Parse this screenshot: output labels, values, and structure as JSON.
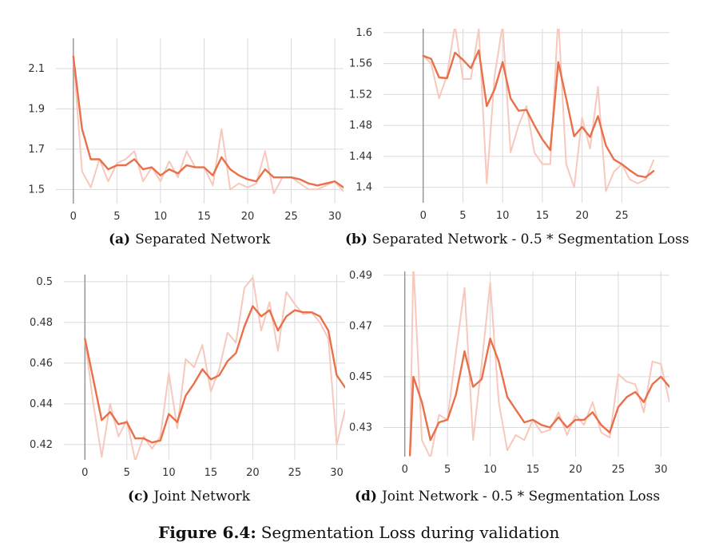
{
  "colors": {
    "smoothed": "#e8704a",
    "raw": "#f7c8bc",
    "grid": "#d9d9d9",
    "zero_line": "#8a8a8a"
  },
  "figure_caption": {
    "label": "Figure 6.4:",
    "text": "Segmentation Loss during validation"
  },
  "chart_data": [
    {
      "type": "line",
      "caption_label": "(a)",
      "caption_text": "Separated Network",
      "xlim": [
        -2,
        31
      ],
      "ylim": [
        1.43,
        2.25
      ],
      "x_ticks": [
        0,
        5,
        10,
        15,
        20,
        25,
        30
      ],
      "y_ticks": [
        1.5,
        1.7,
        1.9,
        2.1
      ],
      "grid": true,
      "series": [
        {
          "role": "smoothed",
          "x": [
            0,
            1,
            2,
            3,
            4,
            5,
            6,
            7,
            8,
            9,
            10,
            11,
            12,
            13,
            14,
            15,
            16,
            17,
            18,
            19,
            20,
            21,
            22,
            23,
            24,
            25,
            26,
            27,
            28,
            29,
            30,
            31
          ],
          "values": [
            2.16,
            1.8,
            1.65,
            1.65,
            1.6,
            1.62,
            1.62,
            1.65,
            1.6,
            1.61,
            1.57,
            1.6,
            1.58,
            1.62,
            1.61,
            1.61,
            1.57,
            1.66,
            1.6,
            1.57,
            1.55,
            1.54,
            1.6,
            1.56,
            1.56,
            1.56,
            1.55,
            1.53,
            1.52,
            1.53,
            1.54,
            1.51
          ]
        },
        {
          "role": "raw",
          "x": [
            0,
            1,
            2,
            3,
            4,
            5,
            6,
            7,
            8,
            9,
            10,
            11,
            12,
            13,
            14,
            15,
            16,
            17,
            18,
            19,
            20,
            21,
            22,
            23,
            24,
            25,
            26,
            27,
            28,
            29,
            30,
            31
          ],
          "values": [
            2.16,
            1.59,
            1.51,
            1.65,
            1.54,
            1.63,
            1.65,
            1.69,
            1.54,
            1.61,
            1.54,
            1.64,
            1.56,
            1.69,
            1.61,
            1.61,
            1.52,
            1.8,
            1.5,
            1.53,
            1.51,
            1.53,
            1.69,
            1.48,
            1.56,
            1.56,
            1.53,
            1.5,
            1.5,
            1.52,
            1.54,
            1.49
          ]
        }
      ]
    },
    {
      "type": "line",
      "caption_label": "(b)",
      "caption_text": "Separated Network - 0.5 * Segmentation Loss",
      "xlim": [
        -5,
        31
      ],
      "ylim": [
        1.38,
        1.605
      ],
      "x_ticks": [
        0,
        5,
        10,
        15,
        20,
        25
      ],
      "y_ticks": [
        1.4,
        1.44,
        1.48,
        1.52,
        1.56,
        1.6
      ],
      "grid": true,
      "series": [
        {
          "role": "smoothed",
          "x": [
            0,
            1,
            2,
            3,
            4,
            5,
            6,
            7,
            8,
            9,
            10,
            11,
            12,
            13,
            14,
            15,
            16,
            17,
            18,
            19,
            20,
            21,
            22,
            23,
            24,
            25,
            26,
            27,
            28,
            29
          ],
          "values": [
            1.57,
            1.566,
            1.542,
            1.541,
            1.574,
            1.565,
            1.554,
            1.577,
            1.505,
            1.527,
            1.562,
            1.515,
            1.499,
            1.5,
            1.48,
            1.462,
            1.448,
            1.562,
            1.515,
            1.466,
            1.478,
            1.465,
            1.492,
            1.454,
            1.436,
            1.43,
            1.422,
            1.415,
            1.413,
            1.421
          ]
        },
        {
          "role": "raw",
          "x": [
            0,
            1,
            2,
            3,
            4,
            5,
            6,
            7,
            8,
            9,
            10,
            11,
            12,
            13,
            14,
            15,
            16,
            17,
            18,
            19,
            20,
            21,
            22,
            23,
            24,
            25,
            26,
            27,
            28,
            29
          ],
          "values": [
            1.57,
            1.56,
            1.515,
            1.545,
            1.61,
            1.54,
            1.54,
            1.605,
            1.405,
            1.545,
            1.61,
            1.445,
            1.48,
            1.505,
            1.445,
            1.43,
            1.43,
            1.62,
            1.43,
            1.4,
            1.49,
            1.45,
            1.53,
            1.395,
            1.42,
            1.43,
            1.41,
            1.405,
            1.41,
            1.435
          ]
        }
      ]
    },
    {
      "type": "line",
      "caption_label": "(c)",
      "caption_text": "Joint Network",
      "xlim": [
        -2.5,
        31
      ],
      "ylim": [
        0.4125,
        0.5035
      ],
      "x_ticks": [
        0,
        5,
        10,
        15,
        20,
        25,
        30
      ],
      "y_ticks": [
        0.42,
        0.44,
        0.46,
        0.48,
        0.5
      ],
      "grid": true,
      "series": [
        {
          "role": "smoothed",
          "x": [
            0,
            1,
            2,
            3,
            4,
            5,
            6,
            7,
            8,
            9,
            10,
            11,
            12,
            13,
            14,
            15,
            16,
            17,
            18,
            19,
            20,
            21,
            22,
            23,
            24,
            25,
            26,
            27,
            28,
            29,
            30,
            31
          ],
          "values": [
            0.472,
            0.452,
            0.432,
            0.436,
            0.43,
            0.431,
            0.423,
            0.423,
            0.421,
            0.422,
            0.435,
            0.431,
            0.444,
            0.45,
            0.457,
            0.452,
            0.454,
            0.461,
            0.465,
            0.478,
            0.488,
            0.483,
            0.486,
            0.476,
            0.483,
            0.486,
            0.485,
            0.485,
            0.483,
            0.476,
            0.454,
            0.448
          ]
        },
        {
          "role": "raw",
          "x": [
            0,
            1,
            2,
            3,
            4,
            5,
            6,
            7,
            8,
            9,
            10,
            11,
            12,
            13,
            14,
            15,
            16,
            17,
            18,
            19,
            20,
            21,
            22,
            23,
            24,
            25,
            26,
            27,
            28,
            29,
            30,
            31
          ],
          "values": [
            0.472,
            0.44,
            0.414,
            0.44,
            0.424,
            0.432,
            0.412,
            0.424,
            0.418,
            0.424,
            0.455,
            0.428,
            0.462,
            0.458,
            0.469,
            0.446,
            0.457,
            0.475,
            0.47,
            0.497,
            0.502,
            0.476,
            0.49,
            0.466,
            0.495,
            0.489,
            0.484,
            0.485,
            0.48,
            0.472,
            0.42,
            0.437
          ]
        }
      ]
    },
    {
      "type": "line",
      "caption_label": "(d)",
      "caption_text": "Joint Network - 0.5 * Segmentation Loss",
      "xlim": [
        -2.5,
        31
      ],
      "ylim": [
        0.4185,
        0.4915
      ],
      "x_ticks": [
        0,
        5,
        10,
        15,
        20,
        25,
        30
      ],
      "y_ticks": [
        0.43,
        0.45,
        0.47,
        0.49
      ],
      "grid": true,
      "series": [
        {
          "role": "smoothed",
          "x": [
            0.6,
            1,
            2,
            3,
            4,
            5,
            6,
            7,
            8,
            9,
            10,
            11,
            12,
            13,
            14,
            15,
            16,
            17,
            18,
            19,
            20,
            21,
            22,
            23,
            24,
            25,
            26,
            27,
            28,
            29,
            30,
            31
          ],
          "values": [
            0.419,
            0.45,
            0.44,
            0.425,
            0.432,
            0.433,
            0.443,
            0.46,
            0.446,
            0.449,
            0.465,
            0.456,
            0.442,
            0.437,
            0.432,
            0.433,
            0.431,
            0.43,
            0.434,
            0.43,
            0.433,
            0.433,
            0.436,
            0.431,
            0.428,
            0.438,
            0.442,
            0.444,
            0.44,
            0.447,
            0.45,
            0.446
          ]
        },
        {
          "role": "raw",
          "x": [
            0.6,
            1,
            2,
            3,
            4,
            5,
            6,
            7,
            8,
            9,
            10,
            11,
            12,
            13,
            14,
            15,
            16,
            17,
            18,
            19,
            20,
            21,
            22,
            23,
            24,
            25,
            26,
            27,
            28,
            29,
            30,
            31
          ],
          "values": [
            0.419,
            0.495,
            0.425,
            0.418,
            0.435,
            0.433,
            0.46,
            0.485,
            0.425,
            0.455,
            0.487,
            0.44,
            0.421,
            0.427,
            0.425,
            0.433,
            0.428,
            0.429,
            0.436,
            0.427,
            0.435,
            0.431,
            0.44,
            0.428,
            0.426,
            0.451,
            0.448,
            0.447,
            0.436,
            0.456,
            0.455,
            0.44
          ]
        }
      ]
    }
  ]
}
